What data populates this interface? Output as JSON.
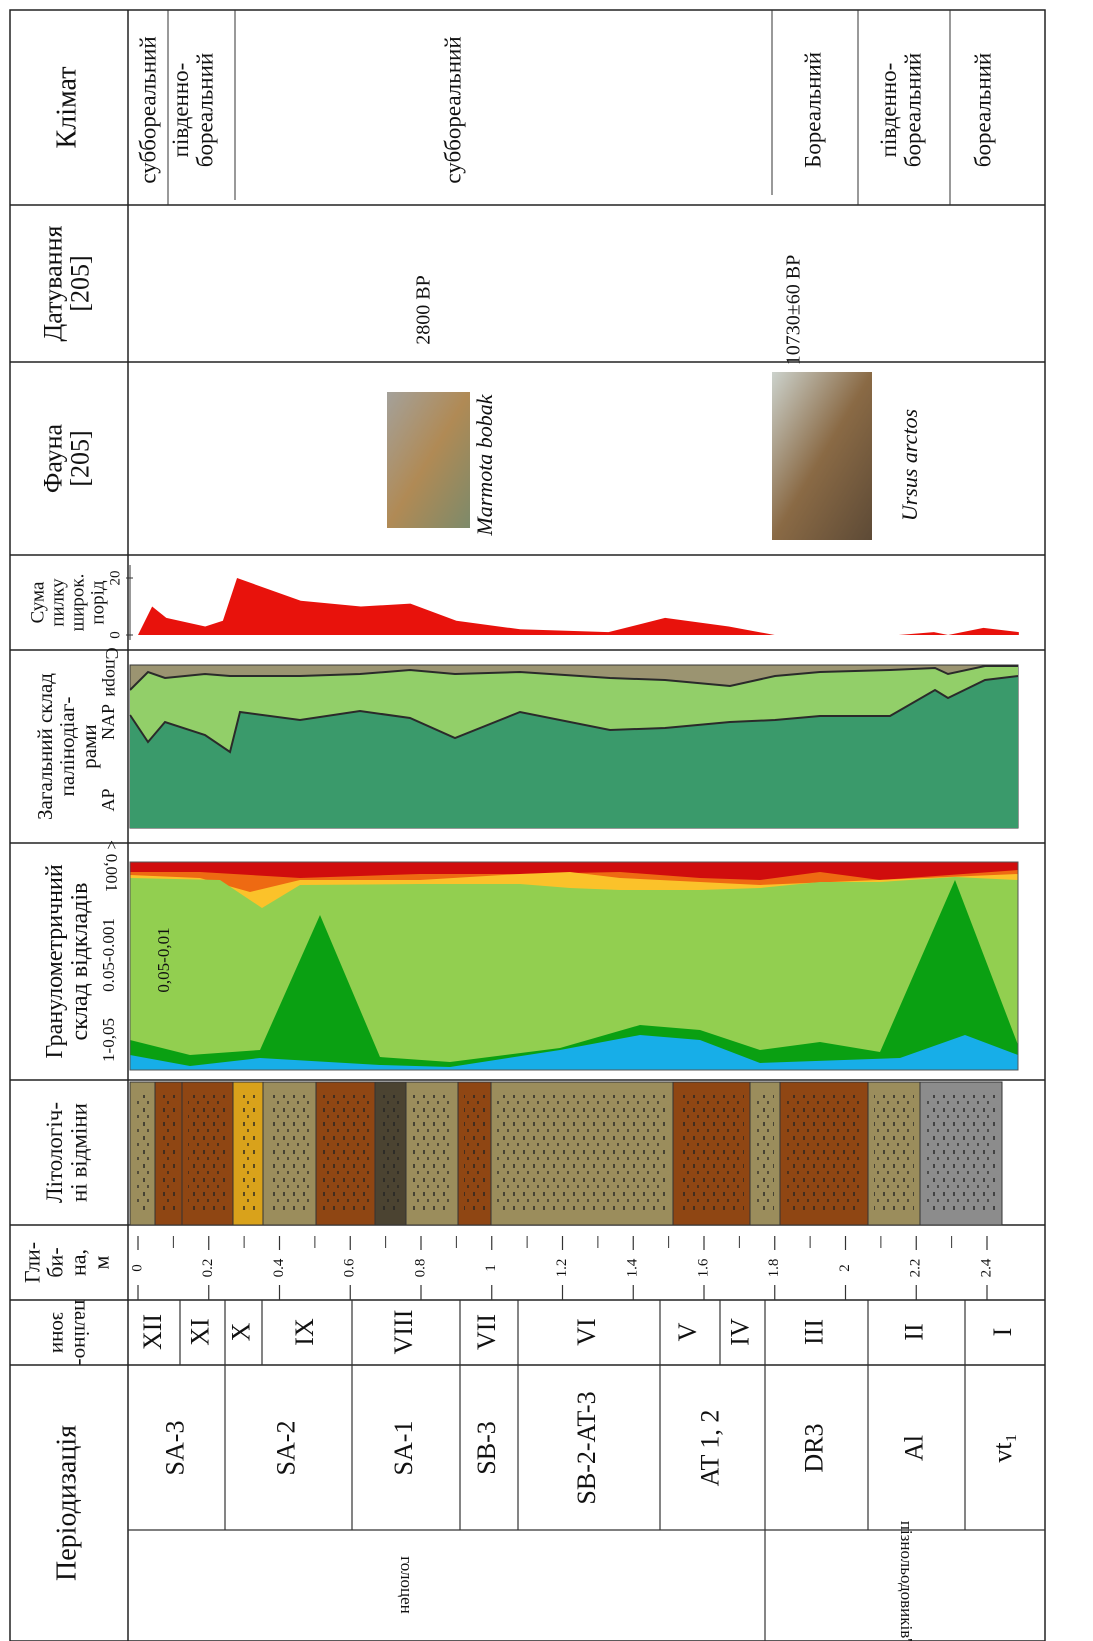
{
  "headers": [
    {
      "lines": [
        "Клімат"
      ]
    },
    {
      "lines": [
        "Датування",
        "[205]"
      ]
    },
    {
      "lines": [
        "Фауна",
        "[205]"
      ]
    },
    {
      "lines": [
        "Сума",
        "пилку",
        "широк.",
        "порід"
      ]
    },
    {
      "lines": [
        "Загальний склад",
        "палінодіаг-",
        "рами"
      ]
    },
    {
      "lines": [
        "Гранулометричний",
        "склад відкладів"
      ]
    },
    {
      "lines": [
        "Літологіч-",
        "ні відміни"
      ]
    },
    {
      "lines": [
        "Гли-",
        "би-",
        "на,",
        "м"
      ]
    },
    {
      "lines": [
        "паліно-",
        "зони"
      ]
    },
    {
      "lines": [
        "Періодизація"
      ]
    }
  ],
  "climate": [
    {
      "lines": [
        "суббореальний"
      ]
    },
    {
      "lines": [
        "південно-",
        "бореальний"
      ]
    },
    {
      "lines": [
        "суббореальний"
      ]
    },
    {
      "lines": [
        "Бореальний"
      ]
    },
    {
      "lines": [
        "південно-",
        "бореальний"
      ]
    },
    {
      "lines": [
        "бореальний"
      ]
    }
  ],
  "dating": [
    "2800 BP",
    "10730±60 BP"
  ],
  "fauna": [
    "Marmota bobak",
    "Ursus arctos"
  ],
  "pollen_sum": {
    "depth": [
      0,
      0.04,
      0.08,
      0.19,
      0.24,
      0.28,
      0.46,
      0.63,
      0.77,
      0.9,
      1.08,
      1.33,
      1.49,
      1.67,
      1.8,
      2.15,
      2.25,
      2.29,
      2.39,
      2.49
    ],
    "values": [
      0,
      10,
      6,
      3,
      5,
      20,
      12,
      10,
      11,
      5,
      2,
      1,
      6,
      3,
      0,
      0,
      1,
      0,
      2.5,
      1
    ],
    "color": "#e8120c",
    "ylim": [
      0,
      20
    ],
    "yticks": [
      0,
      20
    ]
  },
  "pollen_composition": [
    "AP",
    "NAP",
    "Спори"
  ],
  "grain_size": [
    "1-0,05",
    "0.05-0.001",
    "< 0,001",
    "0,05-0,01"
  ],
  "depth_ticks": [
    0,
    0.2,
    0.4,
    0.6,
    0.8,
    1,
    1.2,
    1.4,
    1.6,
    1.8,
    2,
    2.2,
    2.4
  ],
  "palynozones": [
    "XII",
    "XI",
    "X",
    "IX",
    "VIII",
    "VII",
    "VI",
    "V",
    "IV",
    "III",
    "II",
    "I"
  ],
  "periods": [
    "SA-3",
    "SA-2",
    "SA-1",
    "SB-3",
    "SB-2-AT-3",
    "AT 1, 2",
    "DR3",
    "Al",
    "vt₁"
  ],
  "epochs": [
    "голоцен",
    "пізнольодовиків'я"
  ]
}
